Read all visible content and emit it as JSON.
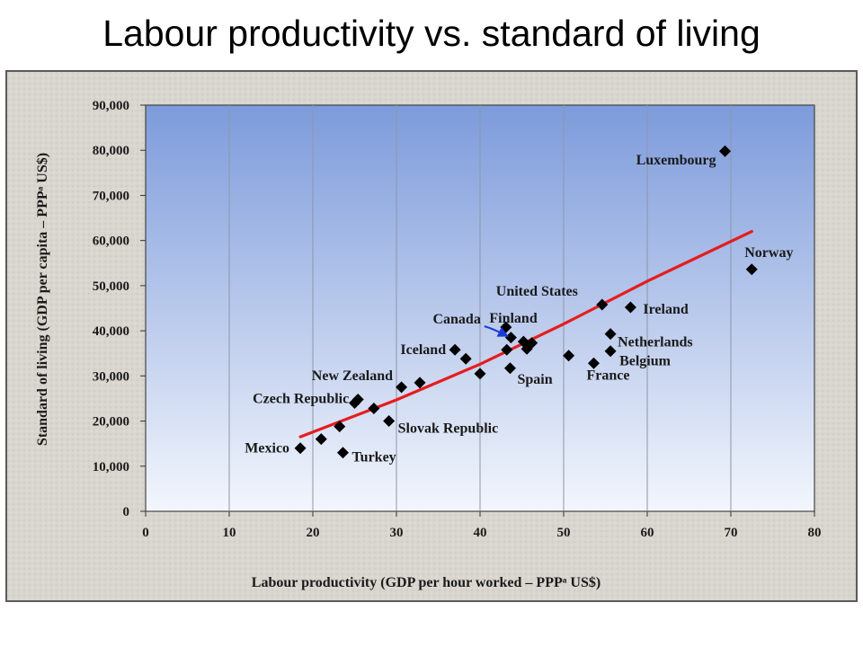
{
  "slide": {
    "title": "Labour productivity vs. standard of living"
  },
  "chart_data": {
    "type": "scatter",
    "title": "",
    "xlabel": "Labour productivity (GDP per hour worked – PPPᵃ US$)",
    "ylabel": "Standard of living (GDP per capita – PPPᵃ US$)",
    "xlim": [
      0,
      80
    ],
    "ylim": [
      0,
      90000
    ],
    "xticks": [
      0,
      10,
      20,
      30,
      40,
      50,
      60,
      70,
      80
    ],
    "yticks": [
      0,
      10000,
      20000,
      30000,
      40000,
      50000,
      60000,
      70000,
      80000,
      90000
    ],
    "ytick_labels": [
      "0",
      "10,000",
      "20,000",
      "30,000",
      "40,000",
      "50,000",
      "60,000",
      "70,000",
      "80,000",
      "90,000"
    ],
    "grid": "vertical",
    "points": [
      {
        "x": 18.5,
        "y": 14000,
        "label": "Mexico"
      },
      {
        "x": 21,
        "y": 16000,
        "label": ""
      },
      {
        "x": 23.2,
        "y": 18800,
        "label": ""
      },
      {
        "x": 23.6,
        "y": 13000,
        "label": "Turkey"
      },
      {
        "x": 25,
        "y": 24000,
        "label": ""
      },
      {
        "x": 25.4,
        "y": 24800,
        "label": "Czech Republic"
      },
      {
        "x": 27.3,
        "y": 22800,
        "label": ""
      },
      {
        "x": 29.1,
        "y": 20000,
        "label": "Slovak Republic"
      },
      {
        "x": 30.6,
        "y": 27500,
        "label": ""
      },
      {
        "x": 32.8,
        "y": 28500,
        "label": "New Zealand"
      },
      {
        "x": 37,
        "y": 35800,
        "label": "Iceland"
      },
      {
        "x": 38.3,
        "y": 33800,
        "label": ""
      },
      {
        "x": 40,
        "y": 30500,
        "label": ""
      },
      {
        "x": 43.1,
        "y": 40800,
        "label": "Canada"
      },
      {
        "x": 43.2,
        "y": 35800,
        "label": ""
      },
      {
        "x": 43.7,
        "y": 38500,
        "label": ""
      },
      {
        "x": 43.6,
        "y": 31700,
        "label": "Spain"
      },
      {
        "x": 45.2,
        "y": 37600,
        "label": "Finland"
      },
      {
        "x": 45.6,
        "y": 36000,
        "label": ""
      },
      {
        "x": 46.2,
        "y": 37300,
        "label": ""
      },
      {
        "x": 50.6,
        "y": 34500,
        "label": ""
      },
      {
        "x": 53.6,
        "y": 32800,
        "label": "France"
      },
      {
        "x": 54.6,
        "y": 45800,
        "label": "United States"
      },
      {
        "x": 55.6,
        "y": 39300,
        "label": "Netherlands"
      },
      {
        "x": 55.6,
        "y": 35500,
        "label": "Belgium"
      },
      {
        "x": 58,
        "y": 45200,
        "label": "Ireland"
      },
      {
        "x": 69.3,
        "y": 79800,
        "label": "Luxembourg"
      },
      {
        "x": 72.5,
        "y": 53600,
        "label": "Norway"
      }
    ],
    "trend_line": [
      {
        "x": 18.5,
        "y": 16500
      },
      {
        "x": 30,
        "y": 24700
      },
      {
        "x": 40,
        "y": 32600
      },
      {
        "x": 50,
        "y": 41500
      },
      {
        "x": 60,
        "y": 51000
      },
      {
        "x": 72.5,
        "y": 62000
      }
    ],
    "annotation_arrow": {
      "target": "Canada",
      "color": "#1a3bd6"
    },
    "colors": {
      "plot_top": "#7d9bdb",
      "plot_bottom": "#f3f6fc",
      "marker": "#000000",
      "trend": "#e51d1d",
      "frame_bg": "#d9d6cf"
    }
  }
}
